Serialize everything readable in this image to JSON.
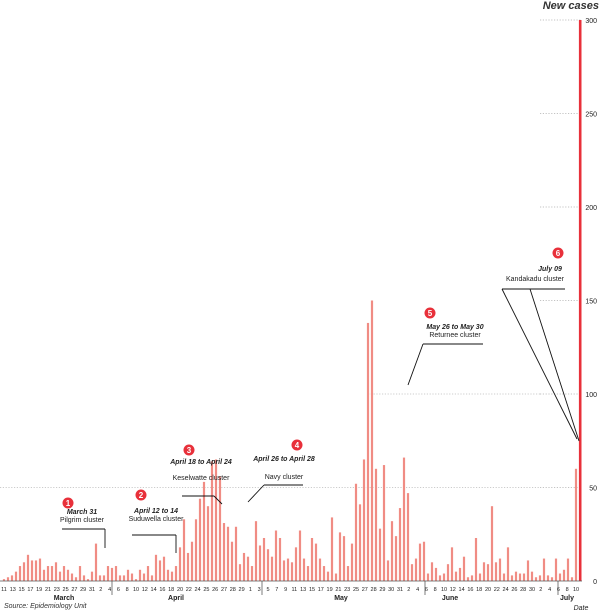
{
  "title": "New cases",
  "source": "Source: Epidemiology Unit",
  "chart_data": {
    "type": "bar",
    "title": "New cases",
    "xlabel": "Date",
    "ylabel": "",
    "ylim": [
      0,
      300
    ],
    "yticks": [
      "0",
      "50",
      "100",
      "150",
      "200",
      "250",
      "300"
    ],
    "bar_color": "#f08c84",
    "highlight_color": "#e8303a",
    "values": [
      1,
      2,
      3,
      5,
      8,
      10,
      14,
      11,
      11,
      12,
      6,
      8,
      8,
      10,
      5,
      8,
      6,
      4,
      2,
      8,
      3,
      1,
      5,
      20,
      3,
      3,
      8,
      7,
      8,
      3,
      3,
      6,
      4,
      1,
      6,
      4,
      8,
      3,
      14,
      11,
      13,
      6,
      5,
      8,
      18,
      33,
      15,
      21,
      33,
      44,
      53,
      40,
      64,
      65,
      56,
      31,
      29,
      21,
      29,
      9,
      15,
      13,
      8,
      32,
      19,
      23,
      17,
      13,
      27,
      23,
      11,
      12,
      10,
      18,
      27,
      12,
      8,
      23,
      20,
      12,
      8,
      5,
      34,
      4,
      26,
      24,
      8,
      20,
      52,
      41,
      65,
      138,
      150,
      60,
      28,
      62,
      11,
      32,
      24,
      39,
      66,
      47,
      9,
      12,
      20,
      21,
      4,
      10,
      7,
      3,
      4,
      9,
      18,
      5,
      7,
      13,
      2,
      3,
      23,
      4,
      10,
      9,
      40,
      10,
      12,
      4,
      18,
      3,
      5,
      4,
      4,
      11,
      5,
      2,
      3,
      12,
      3,
      2,
      12,
      4,
      6,
      12,
      2,
      60,
      300
    ],
    "x_tick_labels": [
      "11",
      "13",
      "15",
      "17",
      "19",
      "21",
      "23",
      "25",
      "27",
      "29",
      "31",
      "2",
      "4",
      "6",
      "8",
      "10",
      "12",
      "14",
      "16",
      "18",
      "20",
      "22",
      "24",
      "25",
      "26",
      "27",
      "28",
      "29",
      "1",
      "3",
      "5",
      "7",
      "9",
      "11",
      "13",
      "15",
      "17",
      "19",
      "21",
      "23",
      "25",
      "27",
      "28",
      "29",
      "30",
      "31",
      "2",
      "4",
      "6",
      "8",
      "10",
      "12",
      "14",
      "16",
      "18",
      "20",
      "22",
      "24",
      "26",
      "28",
      "30",
      "2",
      "4",
      "6",
      "8",
      "10"
    ],
    "months": [
      "March",
      "April",
      "May",
      "June",
      "July"
    ],
    "annotations": [
      {
        "number": "1",
        "date": "March 31",
        "label": "Pilgrim cluster"
      },
      {
        "number": "2",
        "date": "April 12 to 14",
        "label": "Suduwella cluster"
      },
      {
        "number": "3",
        "date": "April 18 to April 24",
        "label": "Keselwatte cluster"
      },
      {
        "number": "4",
        "date": "April 26 to April 28",
        "label": "Navy cluster"
      },
      {
        "number": "5",
        "date": "May 26 to May 30",
        "label": "Returnee cluster"
      },
      {
        "number": "6",
        "date": "July 09",
        "label": "Kandakadu cluster"
      }
    ]
  }
}
